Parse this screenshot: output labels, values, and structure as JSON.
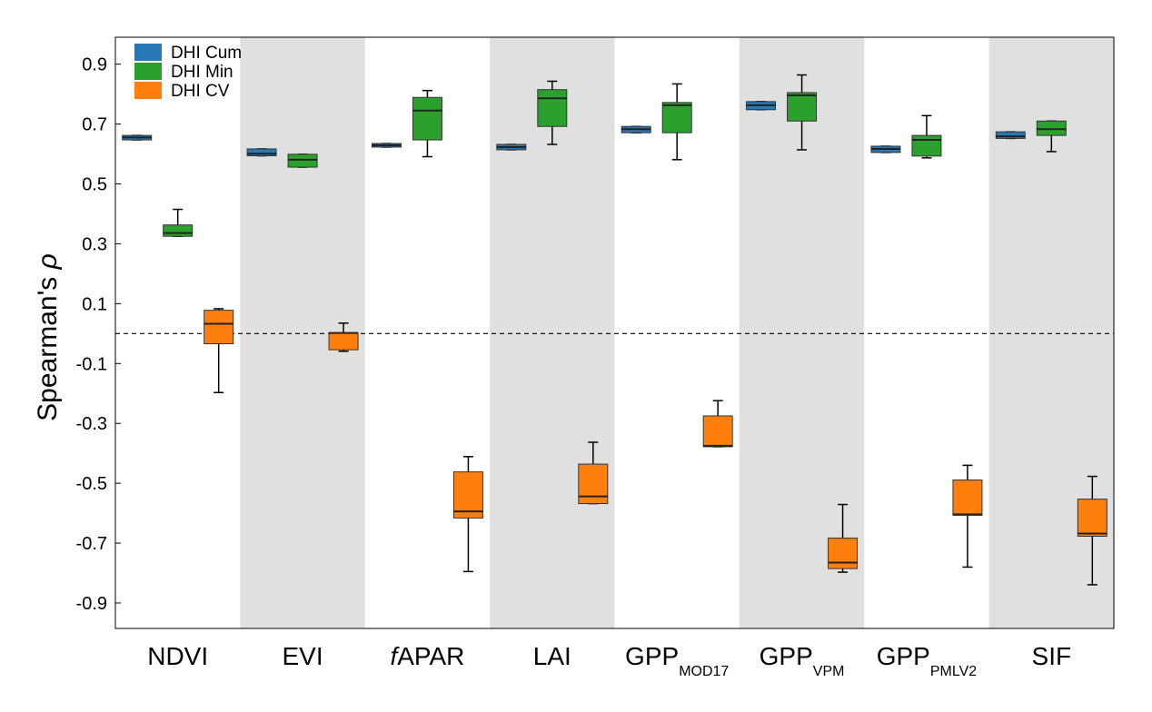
{
  "chart_data": {
    "type": "box",
    "title": "",
    "ylabel": "Spearman's",
    "ylabel_symbol": "ρ",
    "ylim": [
      -0.985,
      0.99
    ],
    "yticks": [
      0.9,
      0.7,
      0.5,
      0.3,
      0.1,
      -0.1,
      -0.3,
      -0.5,
      -0.7,
      -0.9
    ],
    "ytick_labels": [
      "0.9",
      "0.7",
      "0.5",
      "0.3",
      "0.1",
      "-0.1",
      "-0.3",
      "-0.5",
      "-0.7",
      "-0.9"
    ],
    "reference_line": 0.0,
    "shaded_groups": [
      1,
      3,
      5,
      7
    ],
    "legend_position": "top-left",
    "series": [
      {
        "name": "DHI Cum",
        "color": "#2878b5"
      },
      {
        "name": "DHI Min",
        "color": "#2ca02c"
      },
      {
        "name": "DHI CV",
        "color": "#ff7f0e"
      }
    ],
    "categories": [
      {
        "main": "NDVI",
        "sub": "",
        "italic_prefix": ""
      },
      {
        "main": "EVI",
        "sub": "",
        "italic_prefix": ""
      },
      {
        "main": "APAR",
        "sub": "",
        "italic_prefix": "f"
      },
      {
        "main": "LAI",
        "sub": "",
        "italic_prefix": ""
      },
      {
        "main": "GPP",
        "sub": "MOD17",
        "italic_prefix": ""
      },
      {
        "main": "GPP",
        "sub": "VPM",
        "italic_prefix": ""
      },
      {
        "main": "GPP",
        "sub": "PMLV2",
        "italic_prefix": ""
      },
      {
        "main": "SIF",
        "sub": "",
        "italic_prefix": ""
      }
    ],
    "boxes": [
      {
        "group": 0,
        "series": 0,
        "whisker_low": 0.647,
        "q1": 0.647,
        "median": 0.655,
        "q3": 0.662,
        "whisker_high": 0.662
      },
      {
        "group": 0,
        "series": 1,
        "whisker_low": 0.325,
        "q1": 0.325,
        "median": 0.336,
        "q3": 0.363,
        "whisker_high": 0.415
      },
      {
        "group": 0,
        "series": 2,
        "whisker_low": -0.197,
        "q1": -0.034,
        "median": 0.033,
        "q3": 0.078,
        "whisker_high": 0.083
      },
      {
        "group": 1,
        "series": 0,
        "whisker_low": 0.594,
        "q1": 0.594,
        "median": 0.601,
        "q3": 0.617,
        "whisker_high": 0.617
      },
      {
        "group": 1,
        "series": 1,
        "whisker_low": 0.556,
        "q1": 0.556,
        "median": 0.581,
        "q3": 0.599,
        "whisker_high": 0.599
      },
      {
        "group": 1,
        "series": 2,
        "whisker_low": -0.059,
        "q1": -0.054,
        "median": 0.002,
        "q3": 0.002,
        "whisker_high": 0.035
      },
      {
        "group": 2,
        "series": 0,
        "whisker_low": 0.623,
        "q1": 0.623,
        "median": 0.629,
        "q3": 0.635,
        "whisker_high": 0.635
      },
      {
        "group": 2,
        "series": 1,
        "whisker_low": 0.591,
        "q1": 0.647,
        "median": 0.745,
        "q3": 0.789,
        "whisker_high": 0.812
      },
      {
        "group": 2,
        "series": 2,
        "whisker_low": -0.795,
        "q1": -0.616,
        "median": -0.594,
        "q3": -0.462,
        "whisker_high": -0.411
      },
      {
        "group": 3,
        "series": 0,
        "whisker_low": 0.614,
        "q1": 0.614,
        "median": 0.623,
        "q3": 0.632,
        "whisker_high": 0.632
      },
      {
        "group": 3,
        "series": 1,
        "whisker_low": 0.632,
        "q1": 0.692,
        "median": 0.786,
        "q3": 0.815,
        "whisker_high": 0.843
      },
      {
        "group": 3,
        "series": 2,
        "whisker_low": -0.568,
        "q1": -0.568,
        "median": -0.544,
        "q3": -0.436,
        "whisker_high": -0.363
      },
      {
        "group": 4,
        "series": 0,
        "whisker_low": 0.671,
        "q1": 0.671,
        "median": 0.683,
        "q3": 0.692,
        "whisker_high": 0.692
      },
      {
        "group": 4,
        "series": 1,
        "whisker_low": 0.581,
        "q1": 0.671,
        "median": 0.763,
        "q3": 0.772,
        "whisker_high": 0.834
      },
      {
        "group": 4,
        "series": 2,
        "whisker_low": -0.378,
        "q1": -0.378,
        "median": -0.375,
        "q3": -0.275,
        "whisker_high": -0.224
      },
      {
        "group": 5,
        "series": 0,
        "whisker_low": 0.748,
        "q1": 0.748,
        "median": 0.763,
        "q3": 0.775,
        "whisker_high": 0.775
      },
      {
        "group": 5,
        "series": 1,
        "whisker_low": 0.614,
        "q1": 0.71,
        "median": 0.796,
        "q3": 0.805,
        "whisker_high": 0.864
      },
      {
        "group": 5,
        "series": 2,
        "whisker_low": -0.797,
        "q1": -0.785,
        "median": -0.765,
        "q3": -0.683,
        "whisker_high": -0.571
      },
      {
        "group": 6,
        "series": 0,
        "whisker_low": 0.605,
        "q1": 0.605,
        "median": 0.617,
        "q3": 0.626,
        "whisker_high": 0.626
      },
      {
        "group": 6,
        "series": 1,
        "whisker_low": 0.587,
        "q1": 0.593,
        "median": 0.647,
        "q3": 0.662,
        "whisker_high": 0.728
      },
      {
        "group": 6,
        "series": 2,
        "whisker_low": -0.78,
        "q1": -0.607,
        "median": -0.604,
        "q3": -0.489,
        "whisker_high": -0.44
      },
      {
        "group": 7,
        "series": 0,
        "whisker_low": 0.652,
        "q1": 0.652,
        "median": 0.659,
        "q3": 0.674,
        "whisker_high": 0.674
      },
      {
        "group": 7,
        "series": 1,
        "whisker_low": 0.608,
        "q1": 0.662,
        "median": 0.683,
        "q3": 0.71,
        "whisker_high": 0.71
      },
      {
        "group": 7,
        "series": 2,
        "whisker_low": -0.839,
        "q1": -0.677,
        "median": -0.668,
        "q3": -0.553,
        "whisker_high": -0.477
      }
    ]
  }
}
